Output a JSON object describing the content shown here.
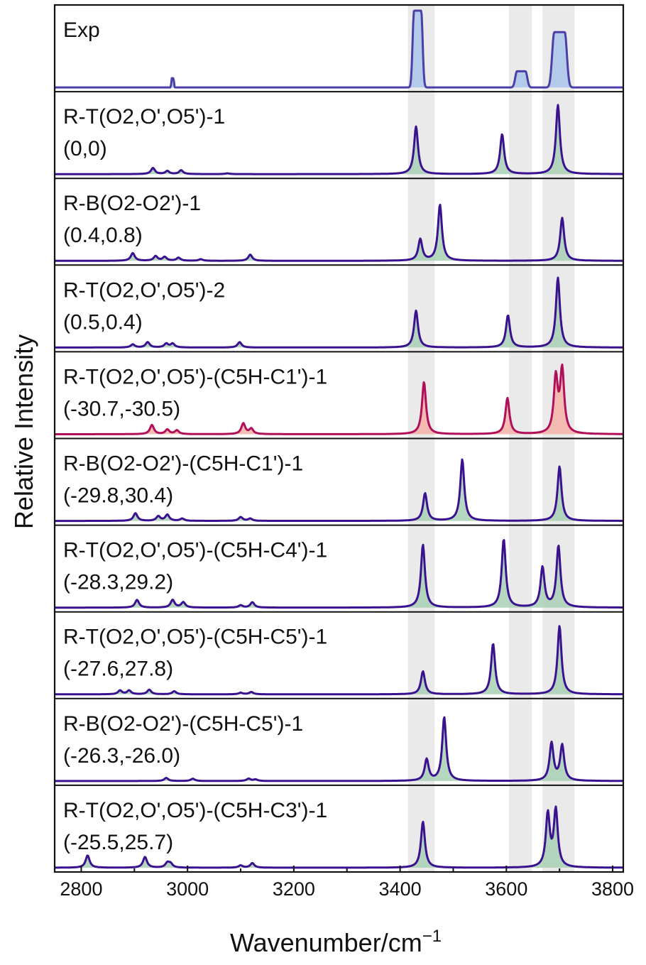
{
  "chart_data": {
    "type": "area",
    "xlabel": "Wavenumber/cm",
    "xlabel_sup": "−1",
    "ylabel": "Relative Intensity",
    "xlim": [
      2750,
      3820
    ],
    "xticks": [
      2800,
      3000,
      3200,
      3400,
      3600,
      3800
    ],
    "grid": false,
    "shaded_regions": [
      [
        3415,
        3465
      ],
      [
        3605,
        3648
      ],
      [
        3668,
        3728
      ]
    ],
    "colors": {
      "exp_line": "#4a3fa6",
      "exp_fill": "#a9c4ea",
      "calc_line": "#3a1290",
      "calc_fill": "#a9d0b4",
      "hl_line": "#b0105a",
      "hl_fill": "#f3b2a6",
      "band": "#d9d9d9"
    },
    "panels": [
      {
        "label1": "Exp",
        "label2": "",
        "style": "exp",
        "peaks": [
          {
            "x": 2972,
            "h": 0.12,
            "w": 4,
            "shape": "flat"
          },
          {
            "x": 3433,
            "h": 1.0,
            "w": 15,
            "shape": "flat"
          },
          {
            "x": 3628,
            "h": 0.21,
            "w": 18,
            "shape": "flat"
          },
          {
            "x": 3700,
            "h": 0.72,
            "w": 22,
            "shape": "flat"
          }
        ]
      },
      {
        "label1": "R-T(O2,O',O5')-1",
        "label2": "(0,0)",
        "style": "calc",
        "peaks": [
          {
            "x": 2935,
            "h": 0.08
          },
          {
            "x": 2962,
            "h": 0.04
          },
          {
            "x": 2988,
            "h": 0.05
          },
          {
            "x": 3075,
            "h": 0.01
          },
          {
            "x": 3430,
            "h": 0.62
          },
          {
            "x": 3592,
            "h": 0.52
          },
          {
            "x": 3697,
            "h": 0.9
          }
        ]
      },
      {
        "label1": "R-B(O2-O2')-1",
        "label2": "(0.4,0.8)",
        "style": "calc",
        "peaks": [
          {
            "x": 2897,
            "h": 0.1
          },
          {
            "x": 2940,
            "h": 0.06
          },
          {
            "x": 2957,
            "h": 0.05
          },
          {
            "x": 2983,
            "h": 0.04
          },
          {
            "x": 3025,
            "h": 0.02
          },
          {
            "x": 3118,
            "h": 0.08
          },
          {
            "x": 3438,
            "h": 0.28
          },
          {
            "x": 3475,
            "h": 0.73
          },
          {
            "x": 3705,
            "h": 0.56
          }
        ]
      },
      {
        "label1": "R-T(O2,O',O5')-2",
        "label2": "(0.5,0.4)",
        "style": "calc",
        "peaks": [
          {
            "x": 2897,
            "h": 0.04
          },
          {
            "x": 2925,
            "h": 0.07
          },
          {
            "x": 2960,
            "h": 0.05
          },
          {
            "x": 2972,
            "h": 0.05
          },
          {
            "x": 3098,
            "h": 0.07
          },
          {
            "x": 3430,
            "h": 0.48
          },
          {
            "x": 3603,
            "h": 0.42
          },
          {
            "x": 3697,
            "h": 0.91
          }
        ]
      },
      {
        "label1": "R-T(O2,O',O5')-(C5H-C1')-1",
        "label2": "(-30.7,-30.5)",
        "style": "highlight",
        "peaks": [
          {
            "x": 2933,
            "h": 0.12
          },
          {
            "x": 2962,
            "h": 0.06
          },
          {
            "x": 2980,
            "h": 0.05
          },
          {
            "x": 3105,
            "h": 0.14
          },
          {
            "x": 3120,
            "h": 0.07
          },
          {
            "x": 3445,
            "h": 0.68
          },
          {
            "x": 3602,
            "h": 0.47
          },
          {
            "x": 3693,
            "h": 0.72
          },
          {
            "x": 3705,
            "h": 0.82
          }
        ]
      },
      {
        "label1": "R-B(O2-O2')-(C5H-C1')-1",
        "label2": "(-29.8,30.4)",
        "style": "calc",
        "peaks": [
          {
            "x": 2902,
            "h": 0.1
          },
          {
            "x": 2945,
            "h": 0.06
          },
          {
            "x": 2962,
            "h": 0.08
          },
          {
            "x": 2990,
            "h": 0.03
          },
          {
            "x": 3100,
            "h": 0.05
          },
          {
            "x": 3118,
            "h": 0.03
          },
          {
            "x": 3447,
            "h": 0.36
          },
          {
            "x": 3517,
            "h": 0.8
          },
          {
            "x": 3700,
            "h": 0.71
          }
        ]
      },
      {
        "label1": "R-T(O2,O',O5')-(C5H-C4')-1",
        "label2": "(-28.3,29.2)",
        "style": "calc",
        "peaks": [
          {
            "x": 2905,
            "h": 0.1
          },
          {
            "x": 2972,
            "h": 0.1
          },
          {
            "x": 2992,
            "h": 0.07
          },
          {
            "x": 3100,
            "h": 0.03
          },
          {
            "x": 3122,
            "h": 0.07
          },
          {
            "x": 3443,
            "h": 0.82
          },
          {
            "x": 3595,
            "h": 0.89
          },
          {
            "x": 3668,
            "h": 0.52
          },
          {
            "x": 3698,
            "h": 0.8
          }
        ]
      },
      {
        "label1": "R-T(O2,O',O5')-(C5H-C5')-1",
        "label2": "(-27.6,27.8)",
        "style": "calc",
        "peaks": [
          {
            "x": 2873,
            "h": 0.05
          },
          {
            "x": 2890,
            "h": 0.05
          },
          {
            "x": 2928,
            "h": 0.06
          },
          {
            "x": 2975,
            "h": 0.04
          },
          {
            "x": 3100,
            "h": 0.02
          },
          {
            "x": 3120,
            "h": 0.03
          },
          {
            "x": 3443,
            "h": 0.3
          },
          {
            "x": 3575,
            "h": 0.66
          },
          {
            "x": 3700,
            "h": 0.89
          }
        ]
      },
      {
        "label1": "R-B(O2-O2')-(C5H-C5')-1",
        "label2": "(-26.3,-26.0)",
        "style": "calc",
        "peaks": [
          {
            "x": 2960,
            "h": 0.04
          },
          {
            "x": 3010,
            "h": 0.03
          },
          {
            "x": 3115,
            "h": 0.03
          },
          {
            "x": 3128,
            "h": 0.02
          },
          {
            "x": 3450,
            "h": 0.28
          },
          {
            "x": 3483,
            "h": 0.83
          },
          {
            "x": 3685,
            "h": 0.49
          },
          {
            "x": 3705,
            "h": 0.46
          }
        ]
      },
      {
        "label1": "R-T(O2,O',O5')-(C5H-C3')-1",
        "label2": "(-25.5,25.7)",
        "style": "calc",
        "peaks": [
          {
            "x": 2812,
            "h": 0.16
          },
          {
            "x": 2920,
            "h": 0.14
          },
          {
            "x": 2962,
            "h": 0.06
          },
          {
            "x": 2968,
            "h": 0.05
          },
          {
            "x": 3100,
            "h": 0.03
          },
          {
            "x": 3122,
            "h": 0.06
          },
          {
            "x": 3443,
            "h": 0.6
          },
          {
            "x": 3678,
            "h": 0.69
          },
          {
            "x": 3693,
            "h": 0.74
          }
        ]
      }
    ]
  }
}
